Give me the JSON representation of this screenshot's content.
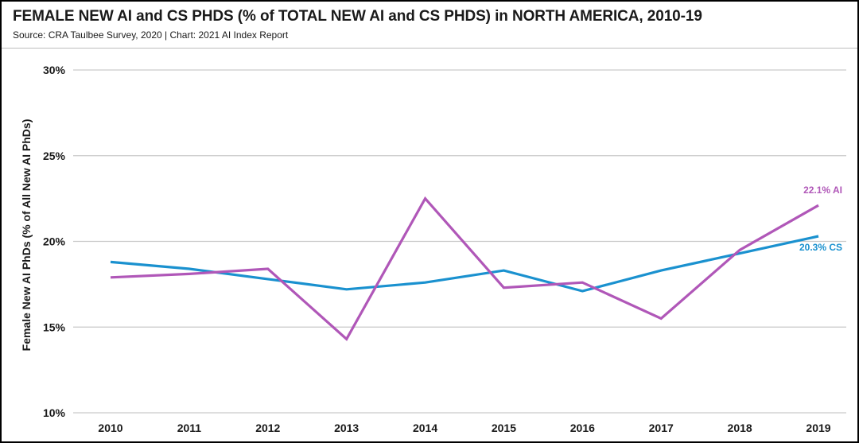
{
  "header": {
    "title": "FEMALE NEW AI and CS PHDS (% of TOTAL NEW AI and CS PHDS) in NORTH AMERICA, 2010-19",
    "subtitle": "Source: CRA Taulbee Survey, 2020 | Chart: 2021 AI Index Report"
  },
  "colors": {
    "ai": "#b057b8",
    "cs": "#1a91cf",
    "grid": "#c9c9c9"
  },
  "chart_data": {
    "type": "line",
    "title": "FEMALE NEW AI and CS PHDS (% of TOTAL NEW AI and CS PHDS) in NORTH AMERICA, 2010-19",
    "xlabel": "",
    "ylabel": "Female New AI PhDs (% of All New AI PhDs)",
    "x": [
      "2010",
      "2011",
      "2012",
      "2013",
      "2014",
      "2015",
      "2016",
      "2017",
      "2018",
      "2019"
    ],
    "ylim": [
      10,
      30
    ],
    "yticks": [
      10,
      15,
      20,
      25,
      30
    ],
    "ytick_labels": [
      "10%",
      "15%",
      "20%",
      "25%",
      "30%"
    ],
    "grid": true,
    "series": [
      {
        "key": "ai",
        "values": [
          17.9,
          18.1,
          18.4,
          14.3,
          22.5,
          17.3,
          17.6,
          15.5,
          19.5,
          22.1
        ],
        "end_label": "22.1% AI"
      },
      {
        "key": "cs",
        "values": [
          18.8,
          18.4,
          17.8,
          17.2,
          17.6,
          18.3,
          17.1,
          18.3,
          19.3,
          20.3
        ],
        "end_label": "20.3% CS"
      }
    ]
  }
}
